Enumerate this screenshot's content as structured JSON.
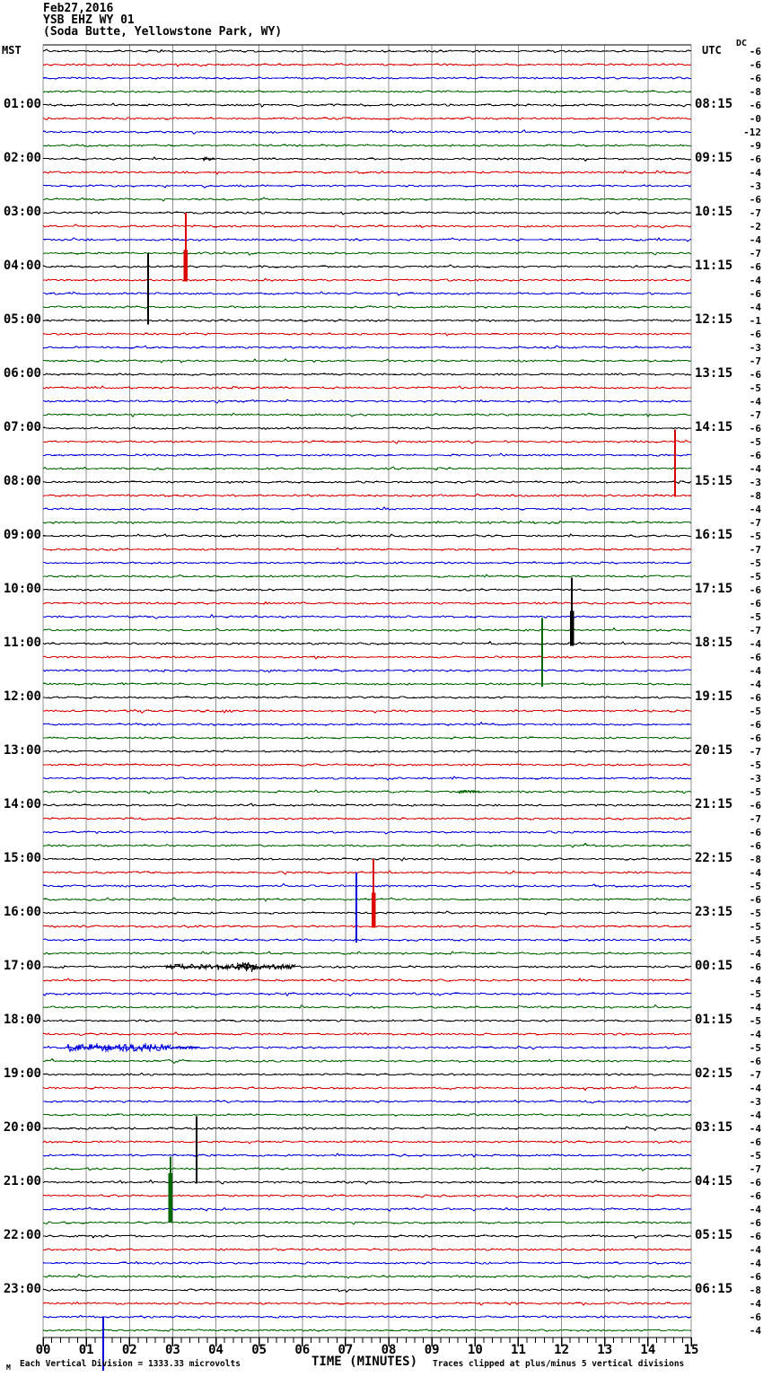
{
  "header": {
    "date": "Feb27,2016",
    "station": "YSB EHZ WY 01",
    "location": "(Soda Butte, Yellowstone Park, WY)"
  },
  "axis": {
    "left_tz": "MST",
    "right_tz": "UTC",
    "dc_label": "DC",
    "x_title": "TIME (MINUTES)",
    "x_ticks": [
      "00",
      "01",
      "02",
      "03",
      "04",
      "05",
      "06",
      "07",
      "08",
      "09",
      "10",
      "11",
      "12",
      "13",
      "14",
      "15"
    ]
  },
  "footer": {
    "corner_mark": "M",
    "scale_note": "Each Vertical Division = 1333.33 microvolts",
    "clip_note": "Traces clipped at plus/minus 5 vertical divisions"
  },
  "chart_data": {
    "type": "line",
    "subtype": "helicorder_seismogram",
    "title": "YSB EHZ WY 01 (Soda Butte, Yellowstone Park, WY) Feb27,2016",
    "xlabel": "TIME (MINUTES)",
    "x_range_minutes": [
      0,
      15
    ],
    "traces_per_hour": 4,
    "total_traces": 96,
    "vertical_division_microvolts": 1333.33,
    "clip_divisions": 5,
    "grid": true,
    "grid_color": "#909090",
    "color_cycle": [
      "#000000",
      "#dd0000",
      "#0000dd",
      "#006600"
    ],
    "left_times": [
      "01:00",
      "02:00",
      "03:00",
      "04:00",
      "05:00",
      "06:00",
      "07:00",
      "08:00",
      "09:00",
      "10:00",
      "11:00",
      "12:00",
      "13:00",
      "14:00",
      "15:00",
      "16:00",
      "17:00",
      "18:00",
      "19:00",
      "20:00",
      "21:00",
      "22:00",
      "23:00"
    ],
    "right_times": [
      "08:15",
      "09:15",
      "10:15",
      "11:15",
      "12:15",
      "13:15",
      "14:15",
      "15:15",
      "16:15",
      "17:15",
      "18:15",
      "19:15",
      "20:15",
      "21:15",
      "22:15",
      "23:15",
      "00:15",
      "01:15",
      "02:15",
      "03:15",
      "04:15",
      "05:15",
      "06:15"
    ],
    "dc_values": [
      "-6",
      "-6",
      "-6",
      "-8",
      "-6",
      "-0",
      "-12",
      "-9",
      "-6",
      "-4",
      "-3",
      "-6",
      "-7",
      "-2",
      "-4",
      "-7",
      "-6",
      "-4",
      "-6",
      "-4",
      "-1",
      "-6",
      "-3",
      "-7",
      "-6",
      "-5",
      "-4",
      "-7",
      "-6",
      "-5",
      "-6",
      "-4",
      "-3",
      "-8",
      "-4",
      "-7",
      "-5",
      "-7",
      "-5",
      "-5",
      "-6",
      "-6",
      "-5",
      "-7",
      "-4",
      "-6",
      "-4",
      "-4",
      "-6",
      "-5",
      "-6",
      "-6",
      "-7",
      "-5",
      "-3",
      "-5",
      "-6",
      "-7",
      "-6",
      "-6",
      "-8",
      "-4",
      "-5",
      "-6",
      "-5",
      "-5",
      "-5",
      "-4",
      "-6",
      "-4",
      "-5",
      "-4",
      "-5",
      "-4",
      "-5",
      "-6",
      "-7",
      "-4",
      "-3",
      "-4",
      "-4",
      "-6",
      "-5",
      "-7",
      "-6",
      "-6",
      "-4",
      "-6",
      "-6",
      "-4",
      "-4",
      "-6",
      "-8",
      "-4",
      "-6",
      "-4"
    ],
    "events": [
      {
        "kind": "spike",
        "trace": 20,
        "minute": 2.43,
        "up_div": 5.0,
        "down_div": 0.3,
        "thick": 0
      },
      {
        "kind": "spike",
        "trace": 17,
        "minute": 3.3,
        "up_div": 5.0,
        "down_div": 0.1,
        "thick": 0.45
      },
      {
        "kind": "spike",
        "trace": 33,
        "minute": 14.63,
        "up_div": 4.9,
        "down_div": 0.1,
        "thick": 0
      },
      {
        "kind": "spike",
        "trace": 44,
        "minute": 12.24,
        "up_div": 4.9,
        "down_div": 0.15,
        "thick": 0.5
      },
      {
        "kind": "spike",
        "trace": 47,
        "minute": 11.55,
        "up_div": 4.9,
        "down_div": 0.2,
        "thick": 0
      },
      {
        "kind": "spike",
        "trace": 65,
        "minute": 7.65,
        "up_div": 5.0,
        "down_div": 0.1,
        "thick": 0.5
      },
      {
        "kind": "spike",
        "trace": 66,
        "minute": 7.25,
        "up_div": 5.0,
        "down_div": 0.2,
        "thick": 0
      },
      {
        "kind": "spike",
        "trace": 84,
        "minute": 3.55,
        "up_div": 4.9,
        "down_div": 0.1,
        "thick": 0
      },
      {
        "kind": "spike",
        "trace": 87,
        "minute": 2.95,
        "up_div": 4.9,
        "down_div": 0.0,
        "thick": 0.75
      },
      {
        "kind": "spike",
        "trace": 94,
        "minute": 1.39,
        "up_div": 0.0,
        "down_div": 4.0,
        "thick": 0
      },
      {
        "kind": "tremor",
        "trace": 8,
        "minute_start": 3.7,
        "minute_end": 3.95,
        "amp_div": 0.12
      },
      {
        "kind": "tremor",
        "trace": 55,
        "minute_start": 9.6,
        "minute_end": 10.1,
        "amp_div": 0.13
      },
      {
        "kind": "tremor",
        "trace": 68,
        "minute_start": 2.85,
        "minute_end": 5.85,
        "amp_div": 0.18
      },
      {
        "kind": "tremor",
        "trace": 68,
        "minute_start": 4.5,
        "minute_end": 4.95,
        "amp_div": 0.33
      },
      {
        "kind": "tremor",
        "trace": 74,
        "minute_start": 0.56,
        "minute_end": 2.95,
        "amp_div": 0.27
      },
      {
        "kind": "tremor",
        "trace": 74,
        "minute_start": 2.95,
        "minute_end": 3.6,
        "amp_div": 0.1
      }
    ]
  }
}
